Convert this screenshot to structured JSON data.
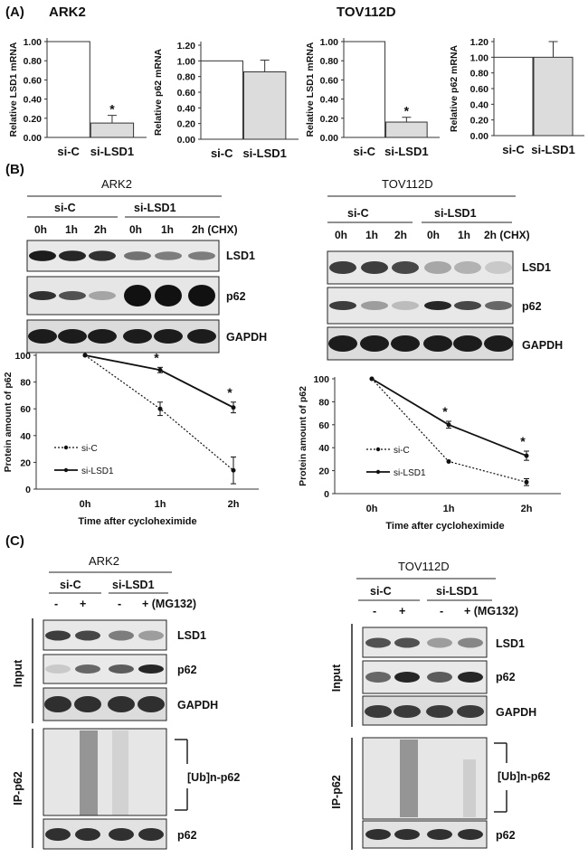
{
  "panel_labels": {
    "a": "(A)",
    "b": "(B)",
    "c": "(C)"
  },
  "panel_a": {
    "titles": {
      "ark2": "ARK2",
      "tov": "TOV112D"
    },
    "charts": [
      {
        "ylabel": "Relative LSD1 mRNA",
        "ticks": [
          "1.00",
          "0.80",
          "0.60",
          "0.40",
          "0.20",
          "0.00"
        ],
        "categories": [
          "si-C",
          "si-LSD1"
        ],
        "star": "*"
      },
      {
        "ylabel": "Relative p62 mRNA",
        "ticks": [
          "1.20",
          "1.00",
          "0.80",
          "0.60",
          "0.40",
          "0.20",
          "0.00"
        ],
        "categories": [
          "si-C",
          "si-LSD1"
        ]
      },
      {
        "ylabel": "Relative LSD1 mRNA",
        "ticks": [
          "1.00",
          "0.80",
          "0.60",
          "0.40",
          "0.20",
          "0.00"
        ],
        "categories": [
          "si-C",
          "si-LSD1"
        ],
        "star": "*"
      },
      {
        "ylabel": "Relative p62 mRNA",
        "ticks": [
          "1.20",
          "1.00",
          "0.80",
          "0.60",
          "0.40",
          "0.20",
          "0.00"
        ],
        "categories": [
          "si-C",
          "si-LSD1"
        ]
      }
    ]
  },
  "panel_b": {
    "ark2": {
      "title": "ARK2",
      "group1": "si-C",
      "group2": "si-LSD1",
      "lanes": [
        "0h",
        "1h",
        "2h",
        "0h",
        "1h",
        "2h (CHX)"
      ],
      "bands": [
        "LSD1",
        "p62",
        "GAPDH"
      ]
    },
    "tov": {
      "title": "TOV112D",
      "group1": "si-C",
      "group2": "si-LSD1",
      "lanes": [
        "0h",
        "1h",
        "2h",
        "0h",
        "1h",
        "2h (CHX)"
      ],
      "bands": [
        "LSD1",
        "p62",
        "GAPDH"
      ]
    },
    "line_labels": {
      "ylabel": "Protein amount of p62",
      "xlabel": "Time after cycloheximide",
      "yticks": [
        "100",
        "80",
        "60",
        "40",
        "20",
        "0"
      ],
      "star": "*"
    }
  },
  "panel_c": {
    "ark2": {
      "title": "ARK2",
      "group1": "si-C",
      "group2": "si-LSD1",
      "treat": [
        "-",
        "+",
        "-",
        "+ (MG132)"
      ],
      "input_label": "Input",
      "ip_label": "IP-p62",
      "bands": [
        "LSD1",
        "p62",
        "GAPDH"
      ],
      "ub_label": "[Ub]n-p62",
      "ip_band": "p62"
    },
    "tov": {
      "title": "TOV112D",
      "group1": "si-C",
      "group2": "si-LSD1",
      "treat": [
        "-",
        "+",
        "-",
        "+ (MG132)"
      ],
      "input_label": "Input",
      "ip_label": "IP-p62",
      "bands": [
        "LSD1",
        "p62",
        "GAPDH"
      ],
      "ub_label": "[Ub]n-p62",
      "ip_band": "p62"
    }
  },
  "chart_data": [
    {
      "type": "bar",
      "categories": [
        "si-C",
        "si-LSD1"
      ],
      "values": [
        1.0,
        0.15
      ],
      "errors": [
        0,
        0.08
      ],
      "ylabel": "Relative LSD1 mRNA",
      "ylim": [
        0,
        1.0
      ],
      "fills": [
        "#ffffff",
        "#dcdcdc"
      ]
    },
    {
      "type": "bar",
      "categories": [
        "si-C",
        "si-LSD1"
      ],
      "values": [
        1.0,
        0.86
      ],
      "errors": [
        0,
        0.15
      ],
      "ylabel": "Relative p62 mRNA",
      "ylim": [
        0,
        1.2
      ],
      "fills": [
        "#ffffff",
        "#dcdcdc"
      ]
    },
    {
      "type": "bar",
      "categories": [
        "si-C",
        "si-LSD1"
      ],
      "values": [
        1.0,
        0.16
      ],
      "errors": [
        0,
        0.05
      ],
      "ylabel": "Relative LSD1 mRNA",
      "ylim": [
        0,
        1.0
      ],
      "fills": [
        "#ffffff",
        "#dcdcdc"
      ]
    },
    {
      "type": "bar",
      "categories": [
        "si-C",
        "si-LSD1"
      ],
      "values": [
        1.0,
        1.0
      ],
      "errors": [
        0,
        0.2
      ],
      "ylabel": "Relative p62 mRNA",
      "ylim": [
        0,
        1.2
      ],
      "fills": [
        "#ffffff",
        "#dcdcdc"
      ]
    },
    {
      "type": "line",
      "x": [
        "0h",
        "1h",
        "2h"
      ],
      "ylabel": "Protein amount of p62",
      "xlabel": "Time after cycloheximide",
      "ylim": [
        0,
        100
      ],
      "series": [
        {
          "name": "si-C",
          "values": [
            100,
            60,
            14
          ],
          "errors": [
            0,
            5,
            10
          ],
          "style": "dotted"
        },
        {
          "name": "si-LSD1",
          "values": [
            100,
            89,
            61
          ],
          "errors": [
            0,
            2,
            4
          ],
          "style": "solid"
        }
      ]
    },
    {
      "type": "line",
      "x": [
        "0h",
        "1h",
        "2h"
      ],
      "ylabel": "Protein amount of p62",
      "xlabel": "Time after cycloheximide",
      "ylim": [
        0,
        100
      ],
      "series": [
        {
          "name": "si-C",
          "values": [
            100,
            28,
            10
          ],
          "errors": [
            0,
            0,
            3
          ],
          "style": "dotted"
        },
        {
          "name": "si-LSD1",
          "values": [
            100,
            60,
            33
          ],
          "errors": [
            0,
            3,
            4
          ],
          "style": "solid"
        }
      ]
    }
  ]
}
